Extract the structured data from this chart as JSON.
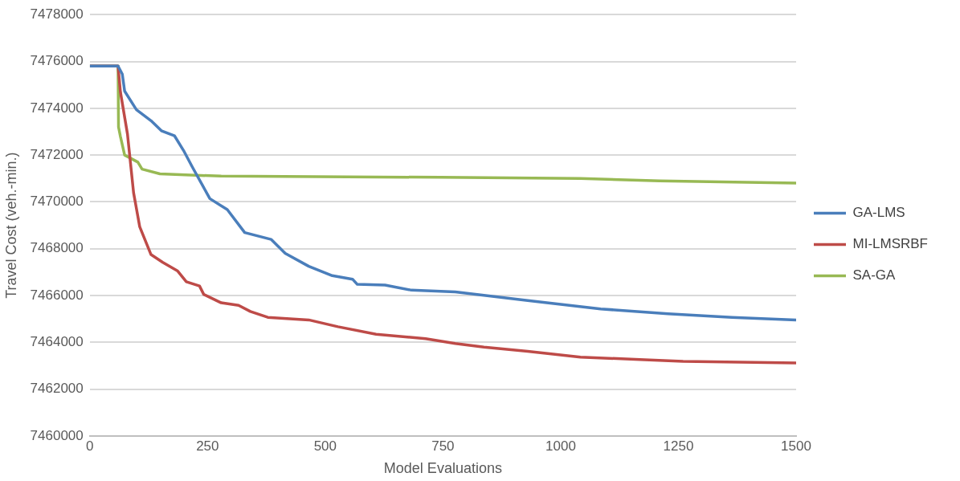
{
  "chart_data": {
    "type": "line",
    "xlabel": "Model Evaluations",
    "ylabel": "Travel Cost (veh.-min.)",
    "xlim": [
      0,
      1500
    ],
    "xticks": [
      0,
      250,
      500,
      750,
      1000,
      1250,
      1500
    ],
    "ylim": [
      7460000,
      7478000
    ],
    "yticks": [
      7460000,
      7462000,
      7464000,
      7466000,
      7468000,
      7470000,
      7472000,
      7474000,
      7476000,
      7478000
    ],
    "grid": "y",
    "legend": "right",
    "marker": "none",
    "line_style": "solid",
    "series": [
      {
        "name": "GA-LMS",
        "color": "#4a7ebb",
        "x": [
          0,
          60,
          69,
          74,
          99,
          130,
          152,
          180,
          199,
          218,
          255,
          292,
          329,
          385,
          415,
          465,
          515,
          558,
          568,
          627,
          683,
          776,
          837,
          930,
          1085,
          1228,
          1364,
          1500
        ],
        "values": [
          7475800,
          7475800,
          7475460,
          7474730,
          7473940,
          7473470,
          7473040,
          7472820,
          7472200,
          7471480,
          7470140,
          7469670,
          7468690,
          7468400,
          7467800,
          7467250,
          7466850,
          7466700,
          7466480,
          7466450,
          7466230,
          7466160,
          7466010,
          7465790,
          7465430,
          7465220,
          7465070,
          7464960
        ]
      },
      {
        "name": "MI-LMSRBF",
        "color": "#be4b48",
        "x": [
          0,
          60,
          65,
          80,
          93,
          106,
          130,
          155,
          186,
          205,
          233,
          242,
          279,
          316,
          341,
          378,
          465,
          527,
          608,
          713,
          776,
          837,
          930,
          1042,
          1178,
          1260,
          1500
        ],
        "values": [
          7475800,
          7475800,
          7474700,
          7472900,
          7470390,
          7468940,
          7467750,
          7467420,
          7467060,
          7466590,
          7466410,
          7466050,
          7465690,
          7465580,
          7465320,
          7465070,
          7464960,
          7464670,
          7464350,
          7464160,
          7463950,
          7463800,
          7463620,
          7463370,
          7463260,
          7463190,
          7463120
        ]
      },
      {
        "name": "SA-GA",
        "color": "#98b954",
        "x": [
          0,
          60,
          61,
          65,
          74,
          102,
          111,
          149,
          279,
          744,
          1042,
          1210,
          1500
        ],
        "values": [
          7475800,
          7475800,
          7473200,
          7472800,
          7472000,
          7471700,
          7471400,
          7471200,
          7471100,
          7471050,
          7471000,
          7470900,
          7470800
        ]
      }
    ]
  }
}
